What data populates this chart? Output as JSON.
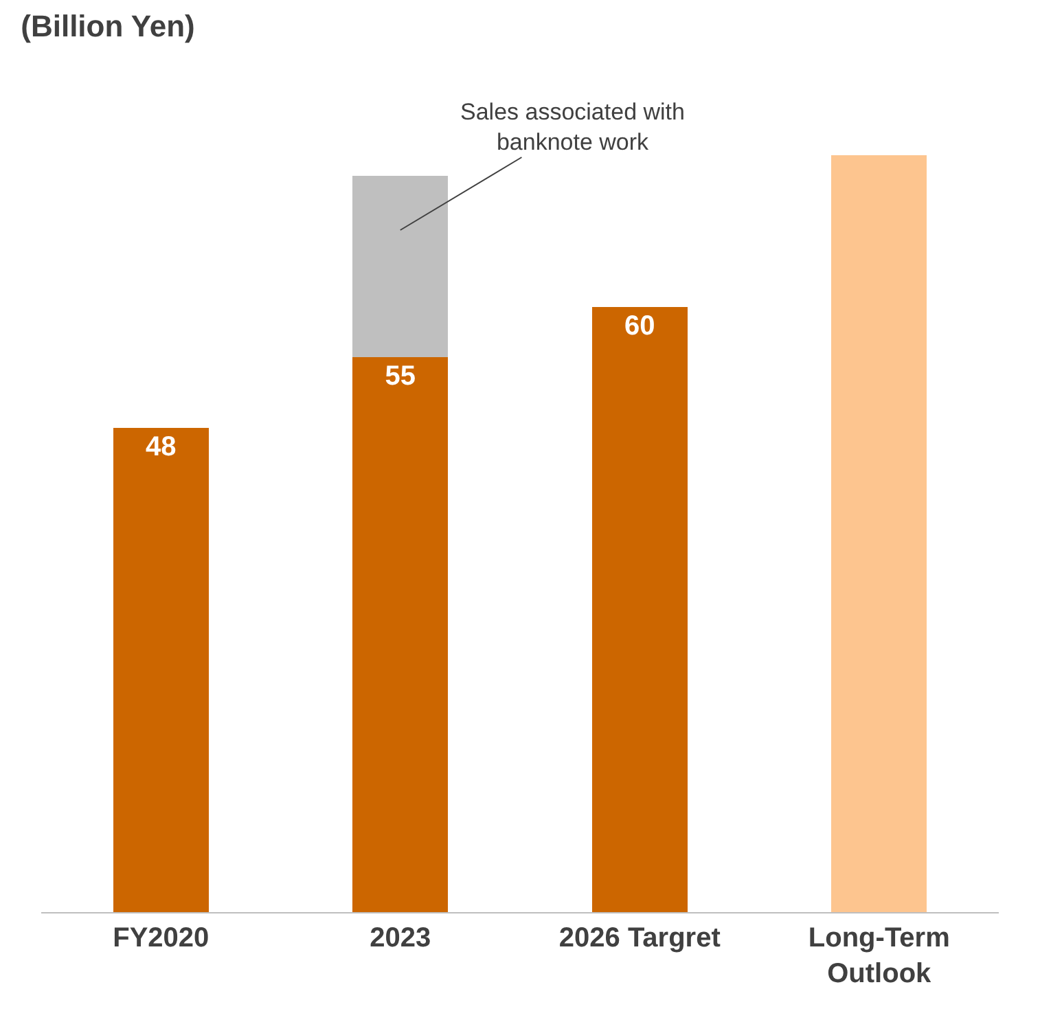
{
  "chart_data": {
    "type": "bar",
    "title": "(Billion Yen)",
    "stacked": true,
    "categories": [
      "FY2020",
      "2023",
      "2026 Targret",
      "Long-Term Outlook"
    ],
    "series": [
      {
        "colors": [
          "#cc6600",
          "#cc6600",
          "#cc6600",
          "#fdc58f"
        ],
        "values": [
          48,
          55,
          60,
          75
        ],
        "value_labels": [
          "48",
          "55",
          "60",
          null
        ]
      },
      {
        "color": "#bfbfbf",
        "values": [
          null,
          18,
          null,
          null
        ]
      }
    ],
    "annotations": [
      "Sales associated with banknote work"
    ]
  }
}
